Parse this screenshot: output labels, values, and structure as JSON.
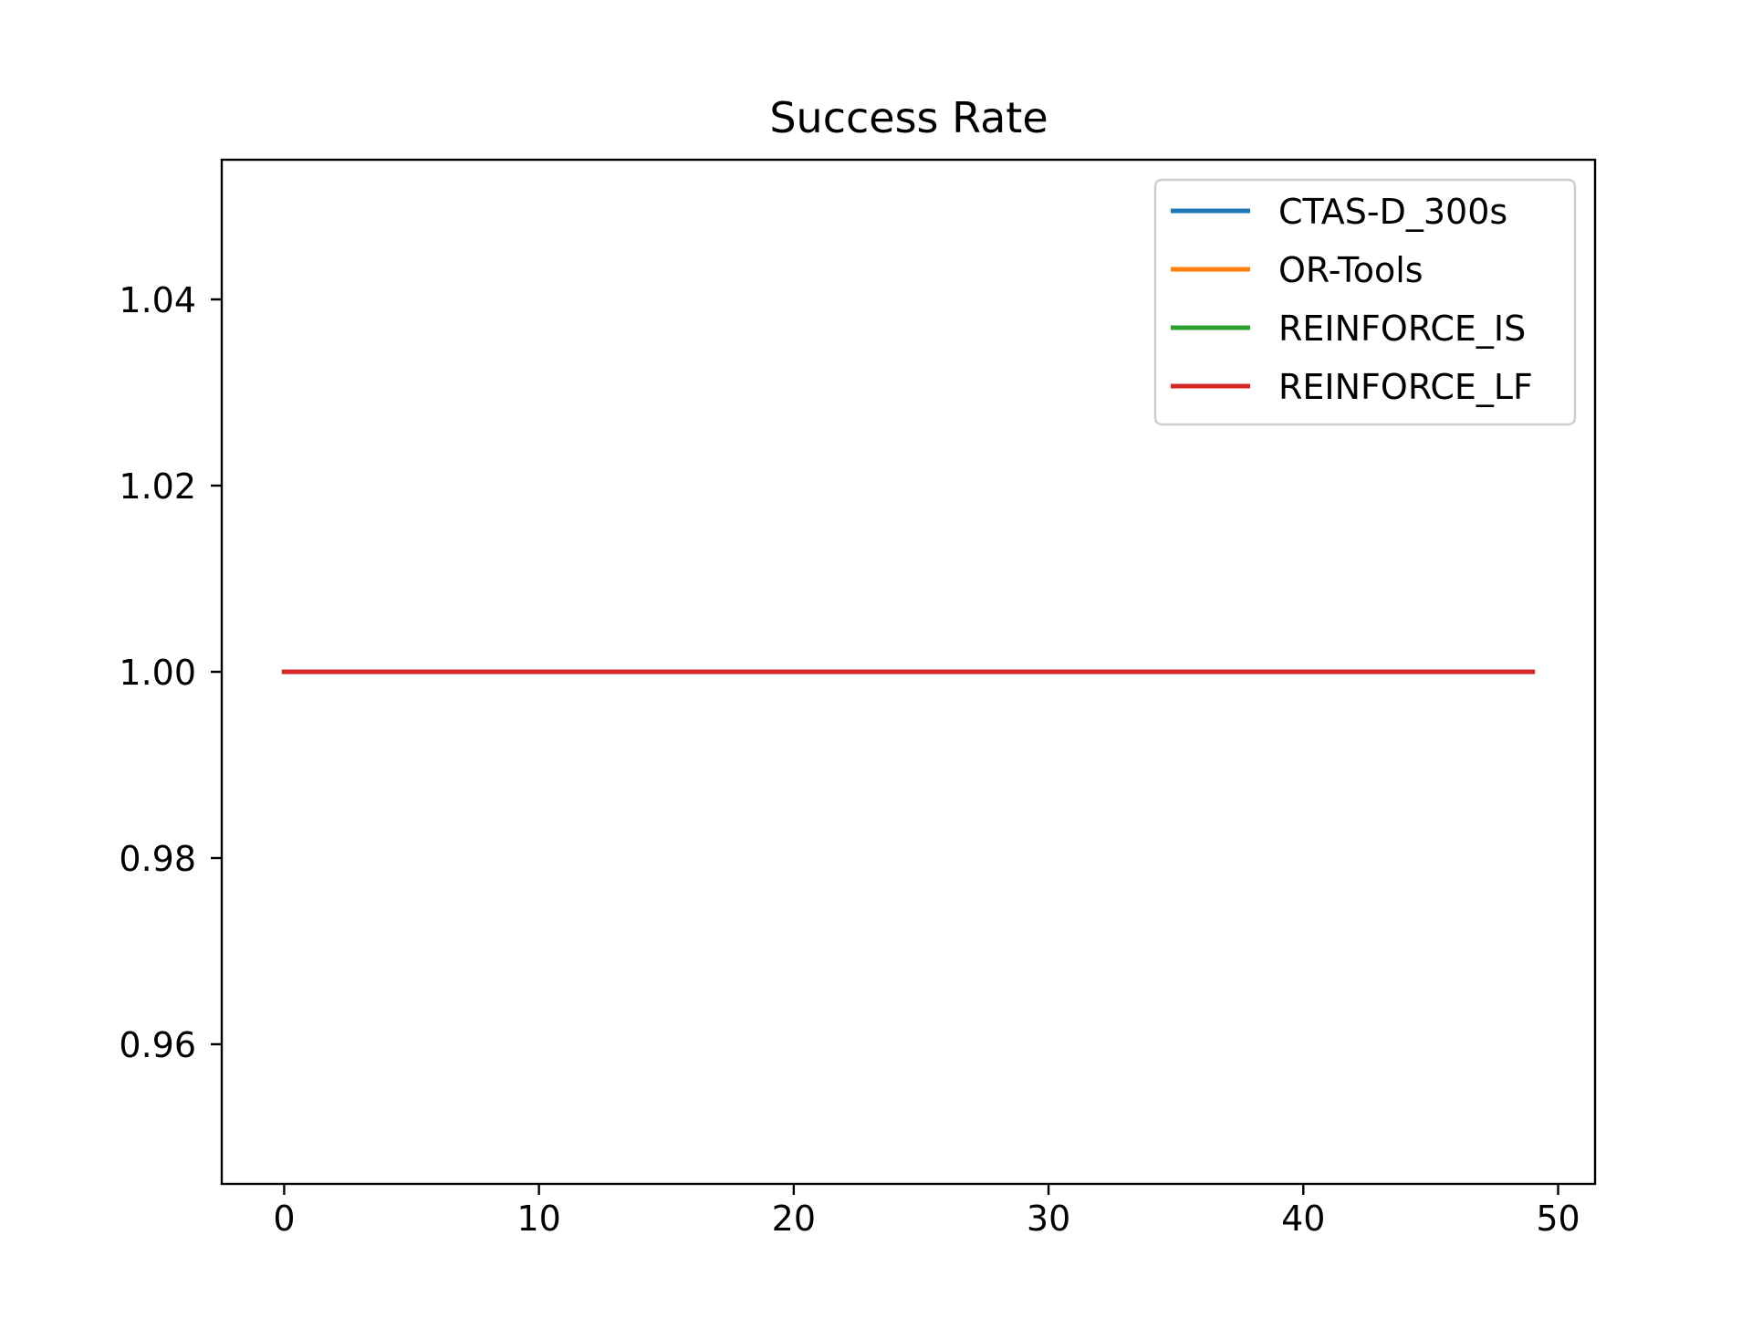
{
  "chart_data": {
    "type": "line",
    "title": "Success Rate",
    "xlabel": "",
    "ylabel": "",
    "xlim": [
      -2.45,
      51.45
    ],
    "ylim": [
      0.945,
      1.055
    ],
    "x_ticks": [
      0,
      10,
      20,
      30,
      40,
      50
    ],
    "x_tick_labels": [
      "0",
      "10",
      "20",
      "30",
      "40",
      "50"
    ],
    "y_ticks": [
      0.96,
      0.98,
      1.0,
      1.02,
      1.04
    ],
    "y_tick_labels": [
      "0.96",
      "0.98",
      "1.00",
      "1.02",
      "1.04"
    ],
    "grid": false,
    "legend_position": "top-right",
    "x": [
      0,
      49
    ],
    "series": [
      {
        "name": "CTAS-D_300s",
        "color": "#1f77b4",
        "values": [
          1.0,
          1.0
        ]
      },
      {
        "name": "OR-Tools",
        "color": "#ff7f0e",
        "values": [
          1.0,
          1.0
        ]
      },
      {
        "name": "REINFORCE_IS",
        "color": "#2ca02c",
        "values": [
          1.0,
          1.0
        ]
      },
      {
        "name": "REINFORCE_LF",
        "color": "#d62728",
        "values": [
          1.0,
          1.0
        ]
      }
    ]
  }
}
